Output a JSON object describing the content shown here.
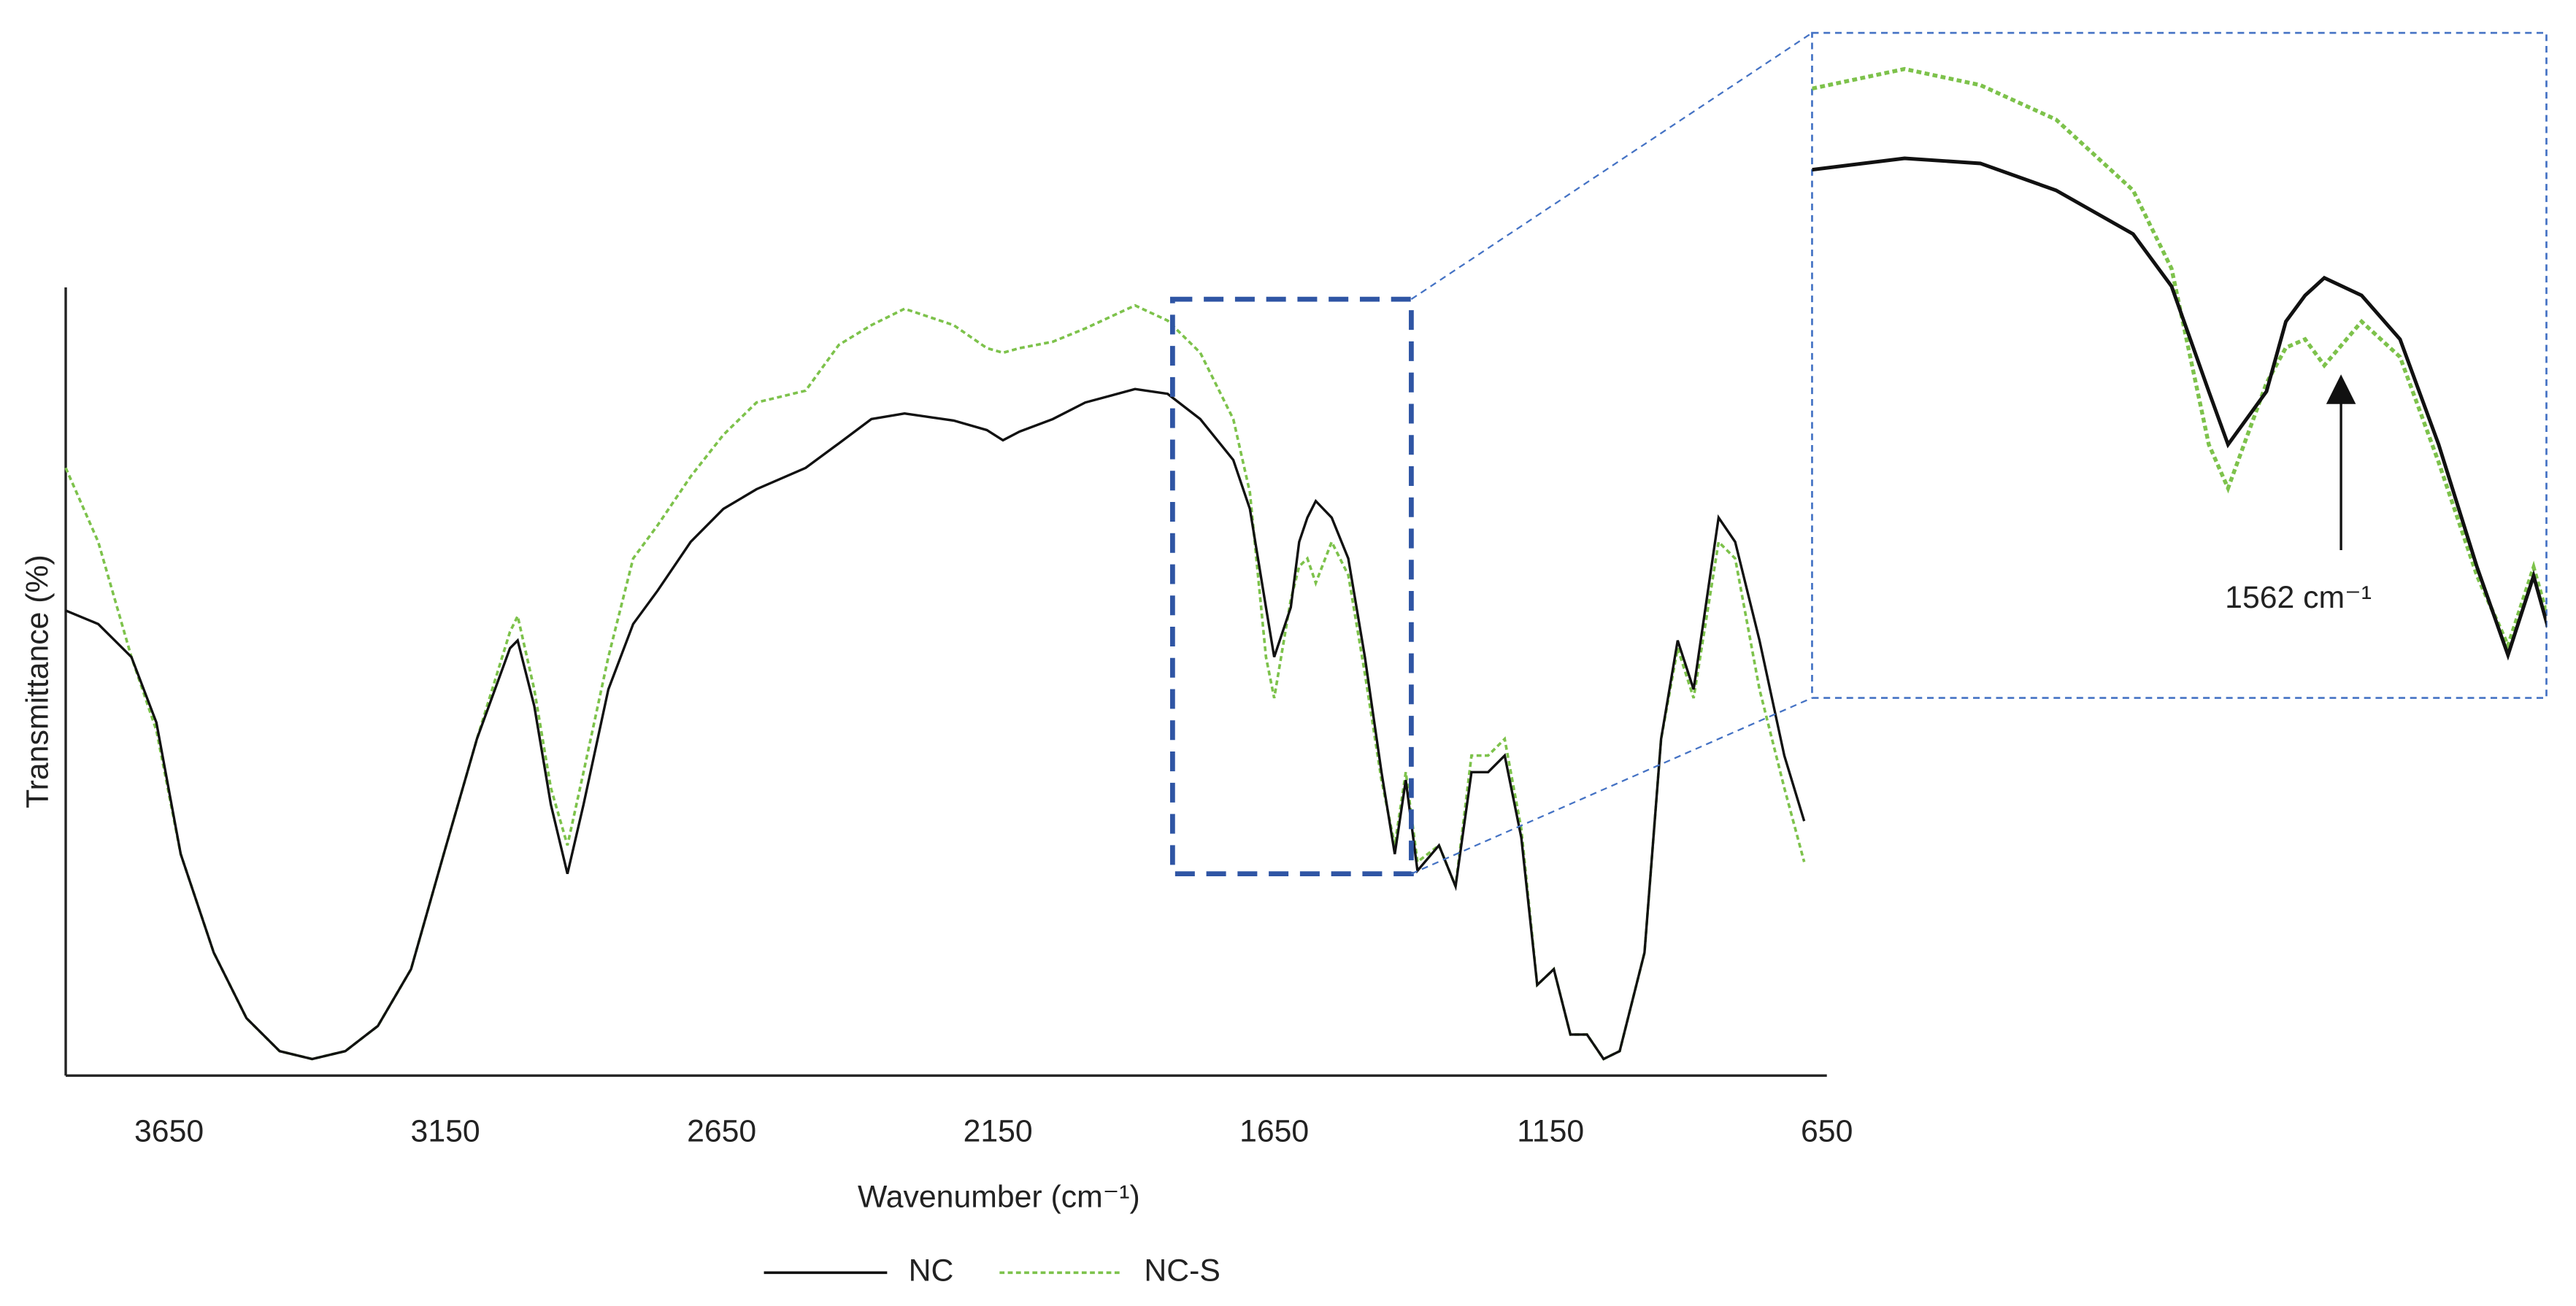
{
  "chart_data": {
    "type": "line",
    "x_label": "Wavenumber (cm⁻¹)",
    "y_label": "Transmittance (%)",
    "xlim": [
      3837,
      650
    ],
    "ylim": [
      0,
      100
    ],
    "xticks": [
      3650,
      3150,
      2650,
      2150,
      1650,
      1150,
      650
    ],
    "x": [
      3837,
      3778,
      3718,
      3673,
      3629,
      3569,
      3510,
      3450,
      3391,
      3331,
      3272,
      3212,
      3153,
      3093,
      3033,
      3019,
      2989,
      2959,
      2929,
      2900,
      2855,
      2810,
      2766,
      2706,
      2647,
      2587,
      2498,
      2438,
      2379,
      2319,
      2230,
      2170,
      2141,
      2111,
      2051,
      1992,
      1902,
      1843,
      1784,
      1724,
      1694,
      1665,
      1650,
      1620,
      1605,
      1590,
      1575,
      1546,
      1516,
      1486,
      1456,
      1432,
      1412,
      1391,
      1352,
      1322,
      1293,
      1263,
      1233,
      1203,
      1174,
      1144,
      1114,
      1084,
      1054,
      1025,
      980,
      950,
      920,
      891,
      846,
      816,
      772,
      727,
      691
    ],
    "series": [
      {
        "name": "NC",
        "color": "#111111",
        "dashed": false,
        "values": [
          59.0,
          57.3,
          53.1,
          44.8,
          28.1,
          15.6,
          7.3,
          3.1,
          2.1,
          3.1,
          6.3,
          13.5,
          28.1,
          42.7,
          54.2,
          55.2,
          46.9,
          34.4,
          25.6,
          34.4,
          49.0,
          57.3,
          61.5,
          67.7,
          71.9,
          74.4,
          77.1,
          80.2,
          83.3,
          84.0,
          83.1,
          81.9,
          80.6,
          81.7,
          83.3,
          85.4,
          87.1,
          86.5,
          83.3,
          78.1,
          71.9,
          59.4,
          53.1,
          59.4,
          67.7,
          70.8,
          72.9,
          70.8,
          65.6,
          53.1,
          38.5,
          28.1,
          37.5,
          26.0,
          29.2,
          24.0,
          38.5,
          38.5,
          40.6,
          30.2,
          11.5,
          13.5,
          5.2,
          5.2,
          2.1,
          3.1,
          15.6,
          42.7,
          55.2,
          49.0,
          70.8,
          67.7,
          55.2,
          40.6,
          32.3
        ]
      },
      {
        "name": "NC-S",
        "color": "#7dc24b",
        "dashed": true,
        "values": [
          77.1,
          67.7,
          53.1,
          43.8,
          28.1,
          15.6,
          7.3,
          3.1,
          2.1,
          3.1,
          6.3,
          13.5,
          28.1,
          42.7,
          56.3,
          58.3,
          49.0,
          36.5,
          29.2,
          38.5,
          53.1,
          65.6,
          69.8,
          76.0,
          81.3,
          85.4,
          86.9,
          92.7,
          95.2,
          97.3,
          95.2,
          92.3,
          91.7,
          92.3,
          93.1,
          94.8,
          97.7,
          95.8,
          91.7,
          83.3,
          74.0,
          53.1,
          47.9,
          60.4,
          64.6,
          65.6,
          62.5,
          67.7,
          63.5,
          51.0,
          37.5,
          29.2,
          38.5,
          27.1,
          29.2,
          24.0,
          40.6,
          40.6,
          42.7,
          31.3,
          11.5,
          13.5,
          5.2,
          5.2,
          2.1,
          3.1,
          15.6,
          42.7,
          54.2,
          47.9,
          67.7,
          65.6,
          49.0,
          36.5,
          27.1
        ]
      }
    ],
    "inset": {
      "xlim": [
        1974,
        1402
      ],
      "ylim": [
        23,
        102
      ],
      "zoom_xlim": [
        1834,
        1402
      ],
      "zoom_ylim": [
        25.6,
        98.5
      ],
      "annotation": {
        "text": "1562 cm⁻¹",
        "x": 1562
      }
    }
  }
}
